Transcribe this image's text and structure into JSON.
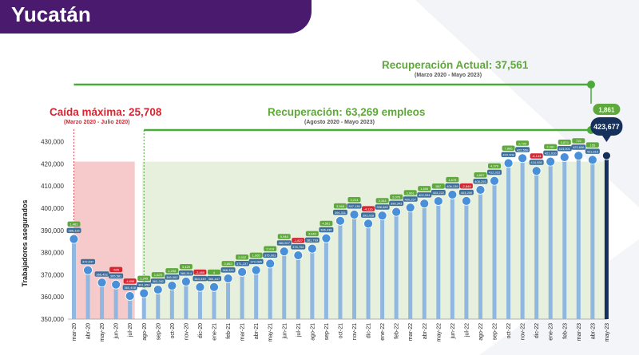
{
  "title": "Yucatán",
  "colors": {
    "title_bg": "#4a1a6e",
    "bar": "#8fb7df",
    "dot": "#4a90d9",
    "label_box": "#3d6e9a",
    "delta_pos": "#5fa83c",
    "delta_neg": "#d72631",
    "navy": "#14305b",
    "green_line": "#4caa3a",
    "green_area": "#e6f0dd",
    "red_area": "#f6caca"
  },
  "annotations": {
    "caida_title": "Caída máxima: 25,708",
    "caida_period": "(Marzo 2020 - Julio 2020)",
    "recuperacion_title": "Recuperación: 63,269 empleos",
    "recuperacion_period": "(Agosto 2020 - Mayo 2023)",
    "actual_title": "Recuperación Actual: 37,561",
    "actual_period": "(Marzo 2020 - Mayo 2023)",
    "final_delta": "1,861",
    "final_value": "423,677"
  },
  "chart_data": {
    "type": "bar",
    "title": "Yucatán",
    "ylabel": "Trabajadores asegurados",
    "xlabel": "",
    "ylim": [
      350000,
      430000
    ],
    "yticks": [
      "350,000",
      "360,000",
      "370,000",
      "380,000",
      "390,000",
      "400,000",
      "410,000",
      "420,000",
      "430,000"
    ],
    "categories": [
      "mar-20",
      "abr-20",
      "may-20",
      "jun-20",
      "jul-20",
      "ago-20",
      "sep-20",
      "oct-20",
      "nov-20",
      "dic-20",
      "ene-21",
      "feb-21",
      "mar-21",
      "abr-21",
      "may-21",
      "jun-21",
      "jul-21",
      "ago-21",
      "sep-21",
      "oct-21",
      "nov-21",
      "dic-21",
      "ene-22",
      "feb-22",
      "mar-22",
      "abr-22",
      "may-22",
      "jun-22",
      "jul-22",
      "ago-22",
      "sep-22",
      "oct-22",
      "nov-22",
      "dic-22",
      "ene-23",
      "feb-23",
      "mar-23",
      "abr-23",
      "may-23"
    ],
    "values": [
      386116,
      372047,
      366452,
      365581,
      360408,
      361653,
      363282,
      365062,
      366914,
      364449,
      364447,
      368320,
      371237,
      372085,
      375003,
      380507,
      378753,
      381793,
      386436,
      394311,
      397135,
      393028,
      396682,
      398343,
      400257,
      402094,
      403222,
      406139,
      403290,
      408293,
      412322,
      420308,
      422550,
      416830,
      421010,
      423001,
      423656,
      421816,
      423677
    ],
    "value_labels": [
      "386,116",
      "372,047",
      "366,452",
      "365,581",
      "360,408",
      "361,653",
      "363,282",
      "365,062",
      "366,914",
      "364,449",
      "364,447",
      "368,320",
      "371,237",
      "372,085",
      "375,003",
      "380,507",
      "378,753",
      "381,793",
      "386,436",
      "394,311",
      "397,135",
      "393,028",
      "396,682",
      "398,343",
      "400,257",
      "402,094",
      "403,222",
      "406,139",
      "403,290",
      "408,293",
      "412,322",
      "420,308",
      "422,550",
      "416,830",
      "421,010",
      "423,001",
      "423,656",
      "421,816",
      "423,677"
    ],
    "deltas": [
      "1,481",
      "",
      "",
      "-525",
      "-4,858",
      "1,245",
      "1,629",
      "1,208",
      "3,429",
      "-2,465",
      "4",
      "3,863",
      "2,932",
      "1,065",
      "2,918",
      "5,948",
      "-1,827",
      "3,040",
      "4,561",
      "3,968",
      "3,214",
      "-4,116",
      "3,344",
      "2,076",
      "1,961",
      "1,606",
      "557",
      "1,678",
      "-2,849",
      "4,857",
      "4,376",
      "7,886",
      "2,799",
      "-6,143",
      "2,381",
      "3,874",
      "715",
      "155",
      ""
    ],
    "highlighted_last": true
  }
}
